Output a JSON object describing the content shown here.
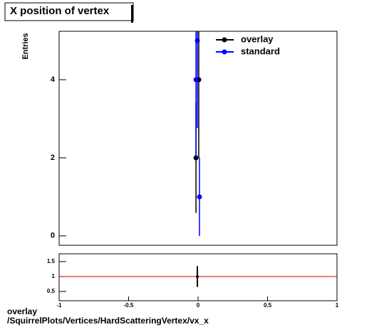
{
  "chart_data": [
    {
      "type": "scatter",
      "title": "X position of vertex",
      "ylabel": "Entries",
      "xlim": [
        -1,
        1
      ],
      "ylim": [
        -0.24,
        5.24
      ],
      "yticks": [
        0,
        2,
        4
      ],
      "legend": "top-right",
      "series": [
        {
          "name": "overlay",
          "color": "#000000",
          "x": [
            -0.015,
            0.005
          ],
          "values": [
            2,
            4
          ],
          "errors": [
            1.41,
            2
          ]
        },
        {
          "name": "standard",
          "color": "#0000ff",
          "x": [
            -0.015,
            -0.005,
            0.01
          ],
          "values": [
            4,
            5,
            1
          ],
          "errors": [
            2,
            2.24,
            1
          ]
        }
      ]
    },
    {
      "type": "ratio",
      "xlim": [
        -1,
        1
      ],
      "ylim": [
        0.19,
        1.76
      ],
      "xticks": [
        -1,
        -0.5,
        0,
        0.5,
        1
      ],
      "yticks": [
        0.5,
        1,
        1.5
      ],
      "reference": 1,
      "reference_color": "#cc0000",
      "series": [
        {
          "color": "#000000",
          "x": [
            -0.005
          ],
          "values": [
            1
          ],
          "errors": [
            0.35
          ]
        }
      ],
      "footer": [
        "overlay",
        "/SquirrelPlots/Vertices/HardScatteringVertex/vx_x"
      ]
    }
  ]
}
